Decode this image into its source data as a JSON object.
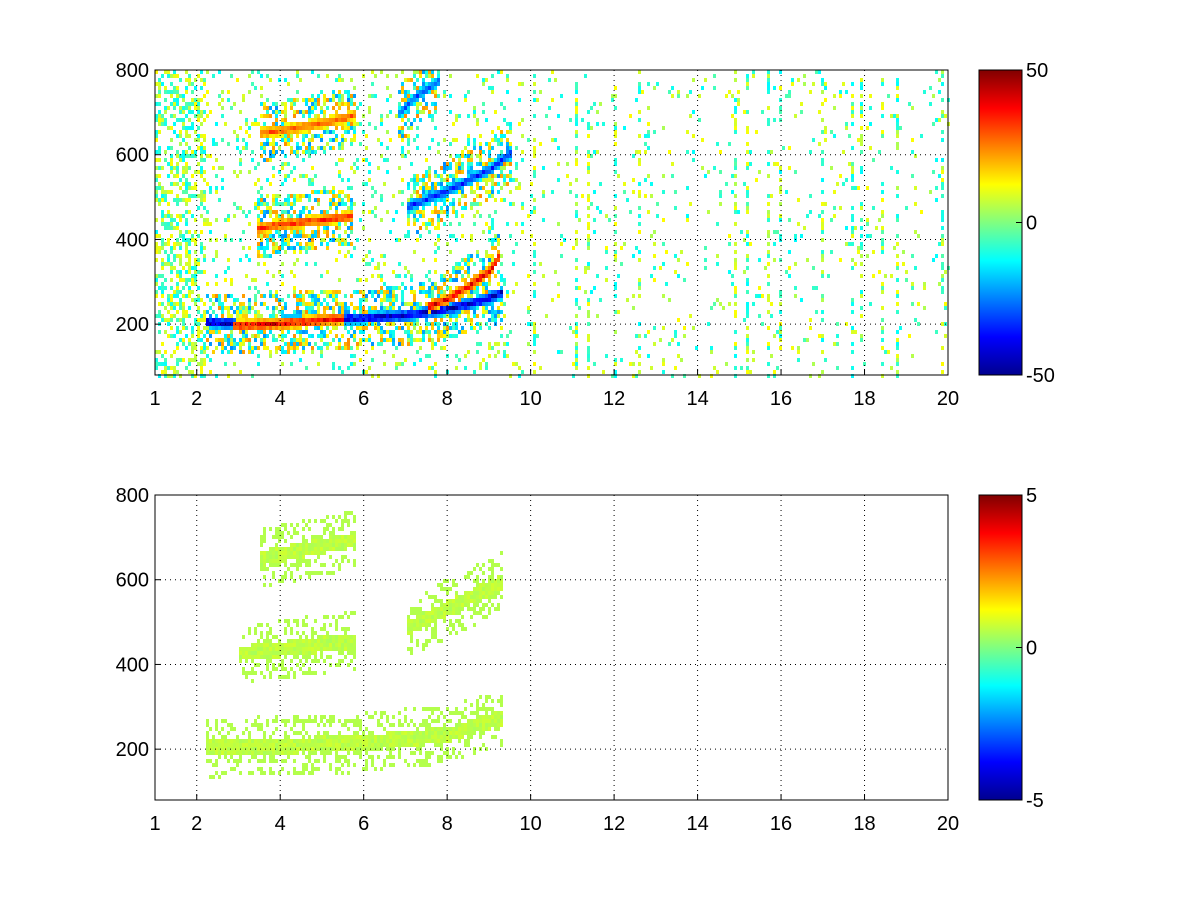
{
  "chart_data": [
    {
      "type": "heatmap",
      "title": "",
      "xlabel": "",
      "ylabel": "",
      "xlim": [
        1,
        20
      ],
      "ylim": [
        80,
        800
      ],
      "x_scale": "linear",
      "grid": true,
      "colormap": "jet",
      "x_ticks": [
        1,
        2,
        4,
        6,
        8,
        10,
        12,
        14,
        16,
        18,
        20
      ],
      "y_ticks": [
        200,
        400,
        600,
        800
      ],
      "colorbar": {
        "min": -50,
        "max": 50,
        "ticks": [
          50,
          0,
          -50
        ]
      },
      "features": [
        {
          "x": [
            2.2,
            3.0,
            4.0,
            5.0,
            5.8,
            7.0,
            8.0,
            8.8,
            9.3
          ],
          "y": [
            210,
            205,
            210,
            215,
            218,
            225,
            240,
            260,
            280
          ],
          "value": -45
        },
        {
          "x": [
            2.8,
            3.5,
            4.5,
            5.5
          ],
          "y": [
            200,
            203,
            210,
            218
          ],
          "value": 40
        },
        {
          "x": [
            7.5,
            8.0,
            8.5,
            9.0,
            9.2
          ],
          "y": [
            245,
            265,
            295,
            330,
            365
          ],
          "value": 40
        },
        {
          "x": [
            3.4,
            4.0,
            5.0,
            5.7
          ],
          "y": [
            430,
            440,
            450,
            460
          ],
          "value": 35
        },
        {
          "x": [
            7.0,
            8.0,
            9.0,
            9.5
          ],
          "y": [
            480,
            520,
            570,
            610
          ],
          "value": -35
        },
        {
          "x": [
            3.5,
            4.5,
            5.5,
            5.8
          ],
          "y": [
            655,
            670,
            690,
            700
          ],
          "value": 30
        },
        {
          "x": [
            6.8,
            7.2,
            7.8
          ],
          "y": [
            700,
            740,
            780
          ],
          "value": -30
        }
      ]
    },
    {
      "type": "heatmap",
      "title": "",
      "xlabel": "",
      "ylabel": "",
      "xlim": [
        1,
        20
      ],
      "ylim": [
        80,
        800
      ],
      "x_scale": "linear",
      "grid": true,
      "colormap": "jet",
      "x_ticks": [
        1,
        2,
        4,
        6,
        8,
        10,
        12,
        14,
        16,
        18,
        20
      ],
      "y_ticks": [
        200,
        400,
        600,
        800
      ],
      "colorbar": {
        "min": -5,
        "max": 5,
        "ticks": [
          5,
          0,
          -5
        ]
      },
      "features": [
        {
          "x": [
            2.2,
            4.0,
            6.0,
            8.0,
            9.3
          ],
          "y": [
            208,
            212,
            220,
            240,
            280
          ],
          "value": 0.5
        },
        {
          "x": [
            3.0,
            5.8
          ],
          "y": [
            430,
            460
          ],
          "value": 0.5
        },
        {
          "x": [
            7.0,
            9.3
          ],
          "y": [
            490,
            600
          ],
          "value": 0.5
        },
        {
          "x": [
            3.5,
            5.8
          ],
          "y": [
            655,
            700
          ],
          "value": 0.5
        }
      ]
    }
  ]
}
